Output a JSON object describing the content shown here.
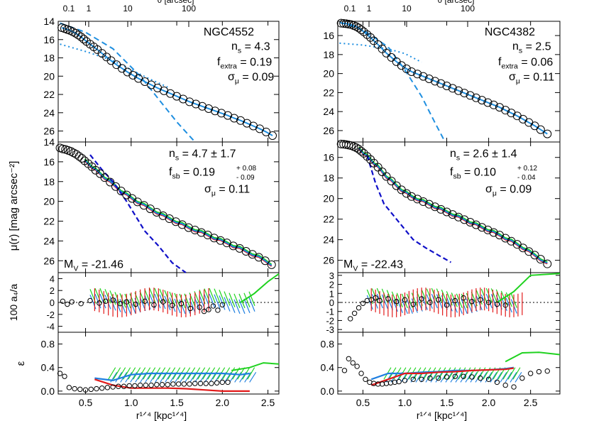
{
  "figure": {
    "top_axis_label": "θ [arcsec]",
    "top_ticks": [
      "0.1",
      "1",
      "10",
      "100"
    ],
    "ylabel_mu": "μ(r)  [mag arcsec⁻²]",
    "ylabel_a4": "100 a₄/a",
    "ylabel_eps": "ε",
    "xlabel": "r¹ᐟ⁴ [kpc¹ᐟ⁴]",
    "x_ticks": [
      "0.5",
      "1.0",
      "1.5",
      "2.0",
      "2.5"
    ],
    "mu_ticks": [
      "14",
      "16",
      "18",
      "20",
      "22",
      "24",
      "26"
    ],
    "a4_ticks_left": [
      "4",
      "2",
      "0",
      "-2",
      "-4"
    ],
    "a4_ticks_right": [
      "3",
      "2",
      "1",
      "0",
      "-1",
      "-2",
      "-3"
    ],
    "eps_ticks": [
      "0.8",
      "0.4",
      "0.0"
    ],
    "colors": {
      "data": "#000000",
      "fit": "#1f8fe0",
      "red": "#e21b1b",
      "green": "#1fd21f",
      "blue": "#1f7fe0",
      "navy": "#1010c8"
    }
  },
  "chart_data": [
    {
      "type": "scatter",
      "galaxy": "NGC4552",
      "x_range": [
        0.2,
        2.62
      ],
      "mu_range": [
        14,
        27.2
      ],
      "fit": {
        "n_s_label": "n",
        "n_s_sub": "s",
        "n_s_value": " = 4.3",
        "f_label": "f",
        "f_sub": "extra",
        "f_value": " = 0.19",
        "sigma_label": "σ",
        "sigma_sub": "μ",
        "sigma_value": " = 0.09"
      },
      "sb": {
        "n_value": " = 4.7 ± 1.7",
        "f_value": " = 0.19",
        "f_up": "+ 0.08",
        "f_dn": "- 0.09",
        "sigma_value": " = 0.11"
      },
      "mv_label": "M",
      "mv_sub": "V",
      "mv_value": " = -21.46",
      "mu_points": {
        "x": [
          0.24,
          0.27,
          0.3,
          0.33,
          0.36,
          0.39,
          0.42,
          0.45,
          0.48,
          0.51,
          0.55,
          0.59,
          0.63,
          0.68,
          0.73,
          0.78,
          0.84,
          0.9,
          0.96,
          1.02,
          1.08,
          1.15,
          1.22,
          1.29,
          1.36,
          1.43,
          1.5,
          1.57,
          1.64,
          1.71,
          1.78,
          1.85,
          1.92,
          1.99,
          2.06,
          2.13,
          2.2,
          2.27,
          2.34,
          2.41,
          2.48,
          2.55
        ],
        "y": [
          14.7,
          14.8,
          14.9,
          15.0,
          15.15,
          15.3,
          15.5,
          15.7,
          15.95,
          16.2,
          16.5,
          16.8,
          17.1,
          17.5,
          17.9,
          18.3,
          18.75,
          19.15,
          19.55,
          19.9,
          20.25,
          20.6,
          20.95,
          21.3,
          21.6,
          21.9,
          22.2,
          22.5,
          22.8,
          23.05,
          23.3,
          23.55,
          23.8,
          24.05,
          24.3,
          24.6,
          24.85,
          25.15,
          25.45,
          25.75,
          26.1,
          26.5
        ]
      },
      "lower_points": {
        "x": [
          0.22,
          0.25,
          0.28,
          0.31,
          0.34,
          0.37,
          0.4,
          0.43,
          0.46,
          0.49,
          0.53,
          0.57,
          0.61,
          0.66,
          0.71,
          0.77,
          0.83,
          0.89,
          0.95,
          1.01,
          1.07,
          1.14,
          1.21,
          1.28,
          1.35,
          1.42,
          1.49,
          1.56,
          1.63,
          1.7,
          1.77,
          1.84,
          1.91,
          1.98,
          2.05,
          2.12,
          2.19,
          2.26,
          2.33,
          2.4,
          2.47,
          2.54
        ],
        "y": [
          14.6,
          14.7,
          14.75,
          14.85,
          14.95,
          15.1,
          15.25,
          15.45,
          15.65,
          15.9,
          16.2,
          16.5,
          16.85,
          17.2,
          17.6,
          18.05,
          18.5,
          18.95,
          19.35,
          19.7,
          20.05,
          20.4,
          20.75,
          21.1,
          21.45,
          21.75,
          22.05,
          22.35,
          22.65,
          22.9,
          23.15,
          23.4,
          23.7,
          23.95,
          24.2,
          24.5,
          24.75,
          25.05,
          25.35,
          25.65,
          26.0,
          26.4
        ]
      },
      "a4_points": {
        "x": [
          0.25,
          0.3,
          0.35,
          0.45,
          0.55,
          0.65,
          0.72,
          0.8,
          0.88,
          0.95,
          1.05,
          1.15,
          1.25,
          1.35,
          1.45,
          1.55,
          1.65,
          1.75,
          1.8,
          1.85,
          1.9,
          1.95,
          2.0
        ],
        "y": [
          0.2,
          -0.3,
          0.1,
          -0.2,
          0.3,
          -0.1,
          0.2,
          0.4,
          -0.2,
          0.1,
          -0.3,
          0.2,
          -0.4,
          0.1,
          -0.5,
          -0.2,
          -1.0,
          -0.8,
          -1.5,
          -1.2,
          -0.6,
          -1.3,
          -0.4
        ]
      },
      "eps_points": {
        "x": [
          0.22,
          0.27,
          0.32,
          0.38,
          0.44,
          0.5,
          0.56,
          0.62,
          0.68,
          0.74,
          0.8,
          0.86,
          0.92,
          0.98,
          1.04,
          1.1,
          1.16,
          1.22,
          1.28,
          1.34,
          1.4,
          1.46,
          1.52,
          1.58,
          1.64,
          1.7,
          1.76,
          1.82,
          1.88,
          1.94,
          2.0,
          2.06
        ],
        "y": [
          0.3,
          0.25,
          0.06,
          0.04,
          0.03,
          0.02,
          0.03,
          0.04,
          0.05,
          0.06,
          0.07,
          0.08,
          0.08,
          0.09,
          0.09,
          0.1,
          0.1,
          0.1,
          0.11,
          0.11,
          0.11,
          0.12,
          0.12,
          0.12,
          0.12,
          0.13,
          0.13,
          0.13,
          0.13,
          0.14,
          0.15,
          0.15
        ]
      }
    },
    {
      "type": "scatter",
      "galaxy": "NGC4382",
      "x_range": [
        0.2,
        2.85
      ],
      "mu_range": [
        14.5,
        27.2
      ],
      "fit": {
        "n_s_label": "n",
        "n_s_sub": "s",
        "n_s_value": " = 2.5",
        "f_label": "f",
        "f_sub": "extra",
        "f_value": " = 0.06",
        "sigma_label": "σ",
        "sigma_sub": "μ",
        "sigma_value": " = 0.11"
      },
      "sb": {
        "n_value": " = 2.6 ± 1.4",
        "f_value": " = 0.10",
        "f_up": "+ 0.12",
        "f_dn": "- 0.04",
        "sigma_value": " = 0.09"
      },
      "mv_label": "M",
      "mv_sub": "V",
      "mv_value": " = -22.43",
      "mu_points": {
        "x": [
          0.24,
          0.27,
          0.3,
          0.33,
          0.36,
          0.39,
          0.42,
          0.45,
          0.48,
          0.51,
          0.55,
          0.59,
          0.63,
          0.68,
          0.73,
          0.78,
          0.84,
          0.9,
          0.96,
          1.02,
          1.08,
          1.15,
          1.22,
          1.29,
          1.36,
          1.43,
          1.5,
          1.57,
          1.64,
          1.71,
          1.78,
          1.85,
          1.92,
          1.99,
          2.06,
          2.13,
          2.2,
          2.27,
          2.34,
          2.41,
          2.48,
          2.55,
          2.62,
          2.7
        ],
        "y": [
          14.7,
          14.72,
          14.75,
          14.8,
          14.85,
          14.95,
          15.05,
          15.2,
          15.4,
          15.6,
          15.9,
          16.2,
          16.55,
          16.95,
          17.4,
          17.85,
          18.3,
          18.75,
          19.15,
          19.5,
          19.8,
          20.05,
          20.3,
          20.55,
          20.8,
          21.05,
          21.3,
          21.55,
          21.8,
          22.05,
          22.3,
          22.55,
          22.8,
          23.05,
          23.3,
          23.55,
          23.85,
          24.15,
          24.45,
          24.8,
          25.15,
          25.5,
          25.9,
          26.35
        ]
      },
      "lower_points": {
        "x": [
          0.24,
          0.27,
          0.3,
          0.33,
          0.36,
          0.39,
          0.42,
          0.45,
          0.48,
          0.51,
          0.55,
          0.59,
          0.63,
          0.68,
          0.73,
          0.78,
          0.84,
          0.9,
          0.96,
          1.02,
          1.08,
          1.15,
          1.22,
          1.29,
          1.36,
          1.43,
          1.5,
          1.57,
          1.64,
          1.71,
          1.78,
          1.85,
          1.92,
          1.99,
          2.06,
          2.13,
          2.2,
          2.27,
          2.34,
          2.41,
          2.48,
          2.55,
          2.62,
          2.7
        ],
        "y": [
          14.7,
          14.72,
          14.75,
          14.8,
          14.85,
          14.95,
          15.05,
          15.2,
          15.4,
          15.6,
          15.9,
          16.2,
          16.55,
          16.95,
          17.4,
          17.85,
          18.3,
          18.75,
          19.15,
          19.5,
          19.8,
          20.05,
          20.3,
          20.55,
          20.8,
          21.05,
          21.3,
          21.55,
          21.8,
          22.05,
          22.3,
          22.55,
          22.8,
          23.05,
          23.3,
          23.55,
          23.85,
          24.15,
          24.45,
          24.8,
          25.15,
          25.5,
          25.9,
          26.35
        ]
      },
      "a4_points": {
        "x": [
          0.35,
          0.4,
          0.45,
          0.5,
          0.55,
          0.6,
          0.65,
          0.7,
          0.8,
          0.9,
          1.0,
          1.1,
          1.2,
          1.3,
          1.4,
          1.5,
          1.6,
          1.7,
          1.8,
          1.9,
          2.0,
          2.1,
          2.2
        ],
        "y": [
          -1.8,
          -1.2,
          -0.6,
          -0.1,
          0.2,
          0.3,
          0.5,
          0.2,
          0.4,
          0.1,
          0.3,
          -0.2,
          0.4,
          0.0,
          0.3,
          -0.3,
          0.2,
          0.5,
          0.1,
          0.3,
          0.0,
          -0.2,
          -0.3
        ]
      },
      "eps_points": {
        "x": [
          0.28,
          0.33,
          0.38,
          0.43,
          0.48,
          0.53,
          0.58,
          0.63,
          0.68,
          0.73,
          0.78,
          0.83,
          0.88,
          0.93,
          1.0,
          1.1,
          1.2,
          1.3,
          1.4,
          1.5,
          1.6,
          1.7,
          1.8,
          1.9,
          2.0,
          2.1,
          2.2,
          2.3,
          2.4,
          2.5,
          2.6,
          2.7
        ],
        "y": [
          0.35,
          0.55,
          0.48,
          0.42,
          0.3,
          0.2,
          0.15,
          0.13,
          0.12,
          0.12,
          0.13,
          0.14,
          0.15,
          0.16,
          0.18,
          0.2,
          0.2,
          0.22,
          0.22,
          0.24,
          0.25,
          0.25,
          0.24,
          0.22,
          0.2,
          0.15,
          0.1,
          0.07,
          0.22,
          0.3,
          0.33,
          0.34
        ]
      }
    }
  ]
}
